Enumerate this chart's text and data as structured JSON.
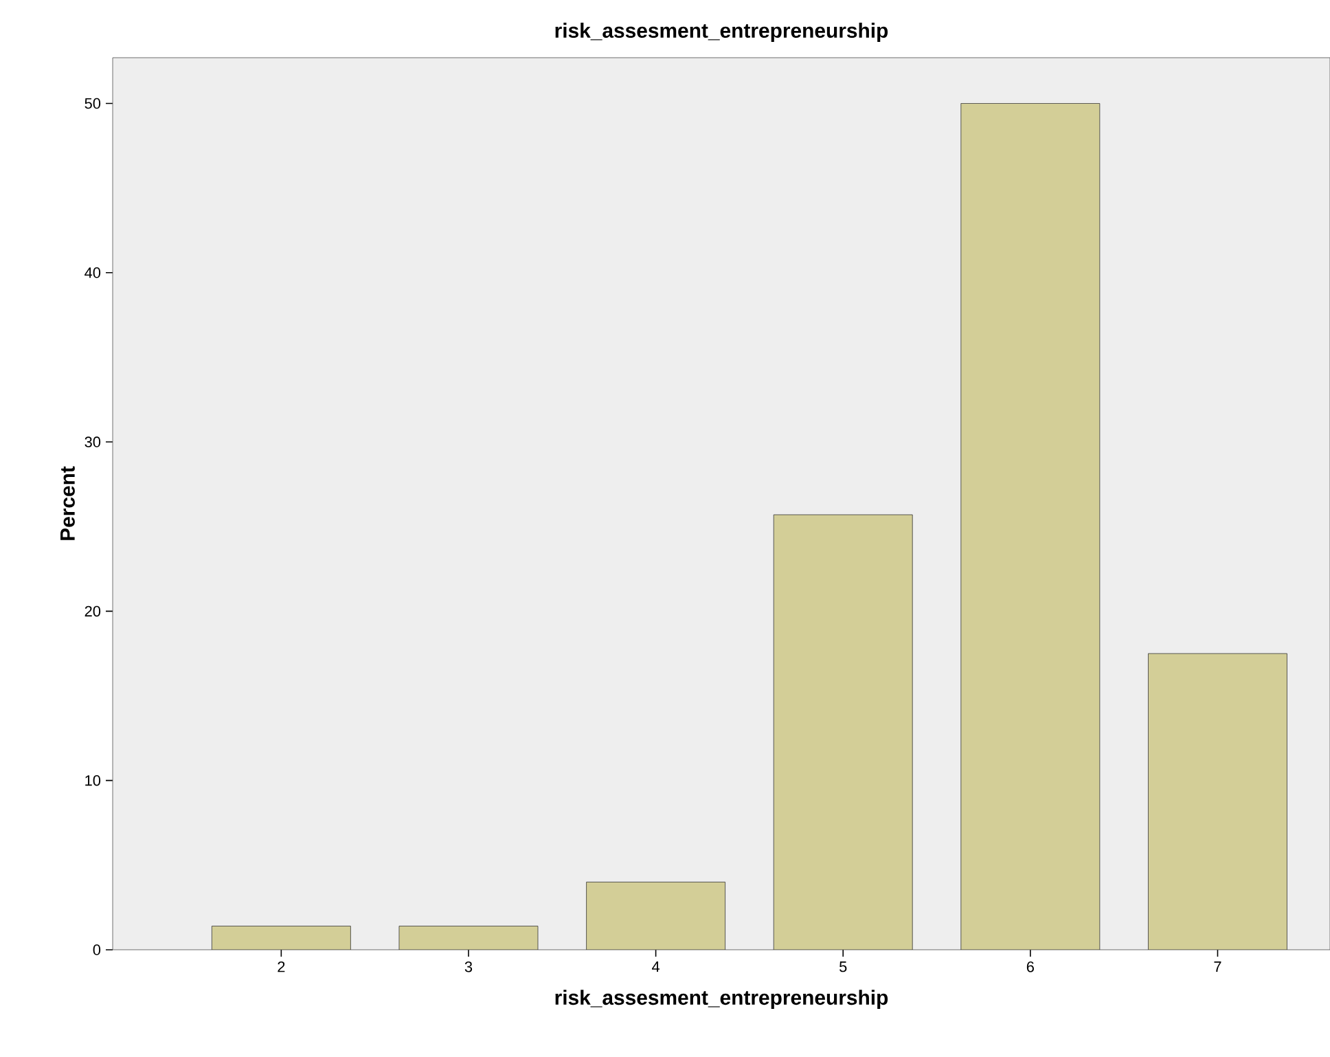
{
  "chart_data": {
    "type": "bar",
    "title": "risk_assesment_entrepreneurship",
    "xlabel": "risk_assesment_entrepreneurship",
    "ylabel": "Percent",
    "categories": [
      "2",
      "3",
      "4",
      "5",
      "6",
      "7"
    ],
    "values": [
      1.4,
      1.4,
      4.0,
      25.7,
      50.0,
      17.5
    ],
    "color": "#d3ce97",
    "ylim": [
      0,
      52.7
    ],
    "yticks": [
      0,
      10,
      20,
      30,
      40,
      50
    ],
    "grid": false
  }
}
